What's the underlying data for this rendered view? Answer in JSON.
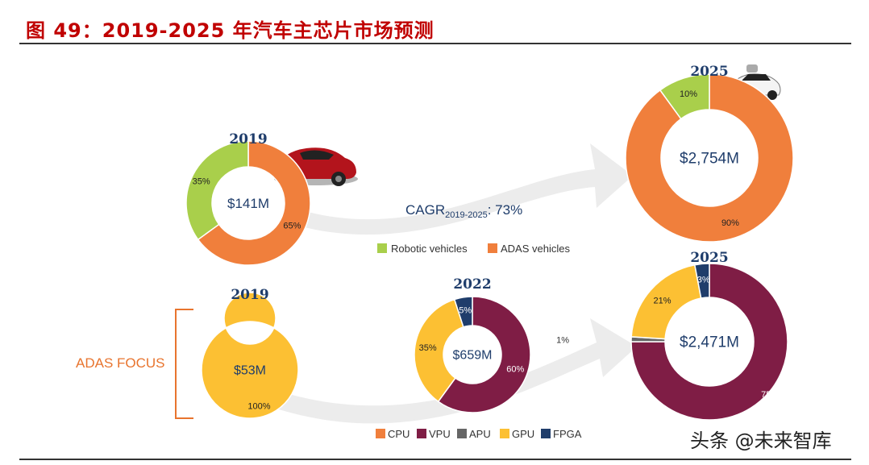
{
  "title": "图 49：2019-2025 年汽车主芯片市场预测",
  "watermark": "头条 @未来智库",
  "adas_focus_label": "ADAS FOCUS",
  "cagr": {
    "prefix": "CAGR",
    "subscript": "2019-2025",
    "value": ": 73%"
  },
  "colors": {
    "robotic": "#a9cf4b",
    "adas": "#f07f3c",
    "cpu": "#f07f3c",
    "vpu": "#7f1d45",
    "apu": "#666666",
    "gpu": "#fcc033",
    "fpga": "#1f3d6b",
    "year_text": "#1f3d6b",
    "value_text": "#1f3d6b"
  },
  "legend_top": [
    {
      "label": "Robotic vehicles",
      "color_key": "robotic"
    },
    {
      "label": "ADAS vehicles",
      "color_key": "adas"
    }
  ],
  "legend_bottom": [
    {
      "label": "CPU",
      "color_key": "cpu"
    },
    {
      "label": "VPU",
      "color_key": "vpu"
    },
    {
      "label": "APU",
      "color_key": "apu"
    },
    {
      "label": "GPU",
      "color_key": "gpu"
    },
    {
      "label": "FPGA",
      "color_key": "fpga"
    }
  ],
  "chart_data": [
    {
      "type": "pie",
      "subtype": "donut",
      "year": "2019",
      "total": "$141M",
      "slices": [
        {
          "name": "ADAS vehicles",
          "value": 65,
          "label": "65%",
          "color_key": "adas"
        },
        {
          "name": "Robotic vehicles",
          "value": 35,
          "label": "35%",
          "color_key": "robotic"
        }
      ]
    },
    {
      "type": "pie",
      "subtype": "donut",
      "year": "2025",
      "total": "$2,754M",
      "slices": [
        {
          "name": "ADAS vehicles",
          "value": 90,
          "label": "90%",
          "color_key": "adas"
        },
        {
          "name": "Robotic vehicles",
          "value": 10,
          "label": "10%",
          "color_key": "robotic"
        }
      ]
    },
    {
      "type": "pie",
      "subtype": "donut",
      "year": "2019",
      "total": "$53M",
      "slices": [
        {
          "name": "GPU",
          "value": 100,
          "label": "100%",
          "color_key": "gpu"
        }
      ]
    },
    {
      "type": "pie",
      "subtype": "donut",
      "year": "2022",
      "total": "$659M",
      "slices": [
        {
          "name": "VPU",
          "value": 60,
          "label": "60%",
          "color_key": "vpu"
        },
        {
          "name": "GPU",
          "value": 35,
          "label": "35%",
          "color_key": "gpu"
        },
        {
          "name": "FPGA",
          "value": 5,
          "label": "5%",
          "color_key": "fpga"
        }
      ]
    },
    {
      "type": "pie",
      "subtype": "donut",
      "year": "2025",
      "total": "$2,471M",
      "slices": [
        {
          "name": "VPU",
          "value": 75,
          "label": "75%",
          "color_key": "vpu"
        },
        {
          "name": "APU",
          "value": 1,
          "label": "1%",
          "color_key": "apu"
        },
        {
          "name": "GPU",
          "value": 21,
          "label": "21%",
          "color_key": "gpu"
        },
        {
          "name": "FPGA",
          "value": 3,
          "label": "3%",
          "color_key": "fpga"
        }
      ]
    }
  ]
}
